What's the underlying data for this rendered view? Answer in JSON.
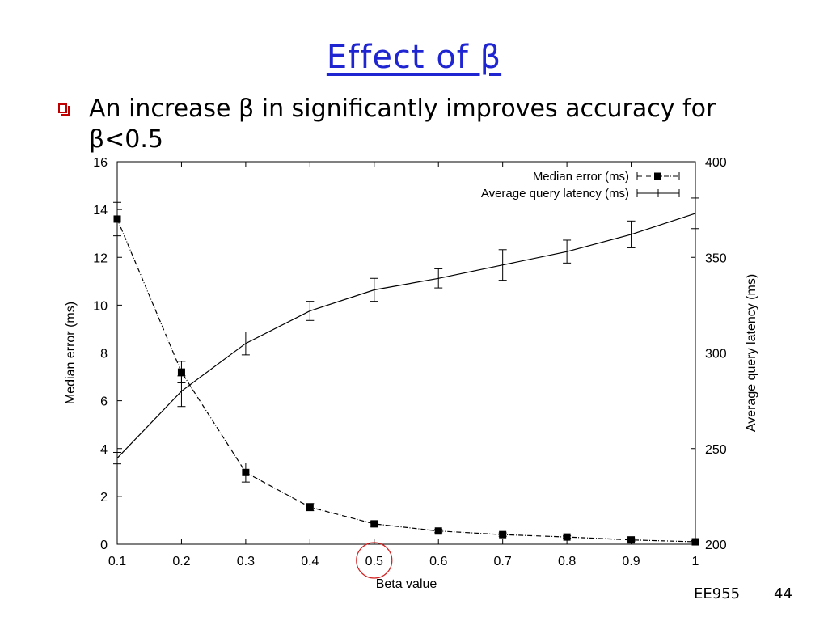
{
  "slide": {
    "title": "Effect of β",
    "bullet": "An increase β in significantly improves accuracy for β<0.5",
    "footer_course": "EE955",
    "page_number": "44"
  },
  "chart_data": {
    "type": "line",
    "title": "",
    "xlabel": "Beta value",
    "ylabel_left": "Median error (ms)",
    "ylabel_right": "Average query latency (ms)",
    "x": [
      0.1,
      0.2,
      0.3,
      0.4,
      0.5,
      0.6,
      0.7,
      0.8,
      0.9,
      1.0
    ],
    "x_ticks": [
      "0.1",
      "0.2",
      "0.3",
      "0.4",
      "0.5",
      "0.6",
      "0.7",
      "0.8",
      "0.9",
      "1"
    ],
    "xlim": [
      0.1,
      1.0
    ],
    "ylim_left": [
      0,
      16
    ],
    "y_ticks_left": [
      "0",
      "2",
      "4",
      "6",
      "8",
      "10",
      "12",
      "14",
      "16"
    ],
    "ylim_right": [
      200,
      400
    ],
    "y_ticks_right": [
      "200",
      "250",
      "300",
      "350",
      "400"
    ],
    "legend_position": "top-right",
    "grid": false,
    "series": [
      {
        "name": "Median error (ms)",
        "axis": "left",
        "style": "dash-dot with filled square markers",
        "values": [
          13.6,
          7.2,
          3.0,
          1.55,
          0.85,
          0.55,
          0.4,
          0.3,
          0.18,
          0.1
        ],
        "error": [
          0.7,
          0.45,
          0.4,
          0.15,
          0.1,
          0.07,
          0.07,
          0.05,
          0.05,
          0.05
        ]
      },
      {
        "name": "Average query latency (ms)",
        "axis": "right",
        "style": "solid line with error bars",
        "values": [
          245,
          280,
          305,
          322,
          333,
          339,
          346,
          353,
          362,
          373
        ],
        "error": [
          3,
          8,
          6,
          5,
          6,
          5,
          8,
          6,
          7,
          8
        ]
      }
    ],
    "annotation": {
      "type": "circle",
      "x": 0.5,
      "color": "#d32020"
    }
  }
}
